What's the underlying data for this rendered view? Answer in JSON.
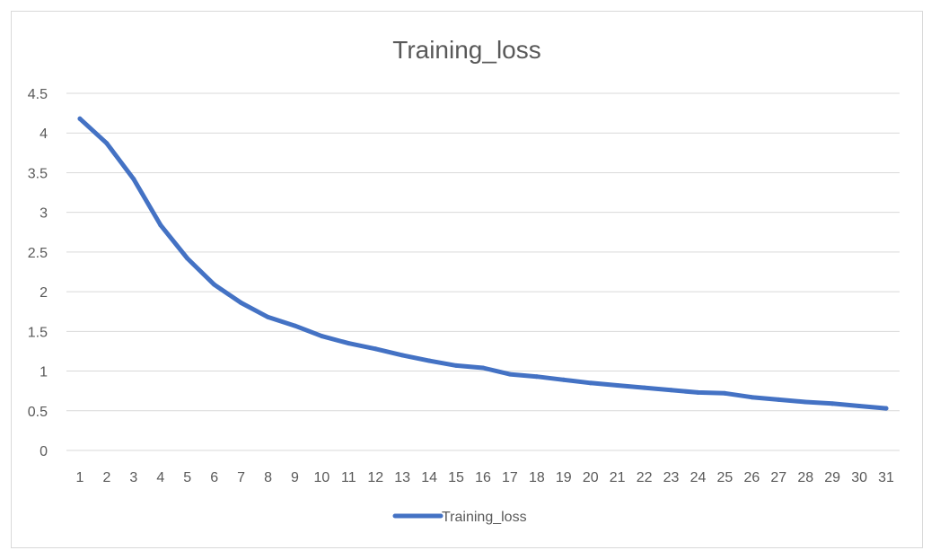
{
  "chart_data": {
    "type": "line",
    "title": "Training_loss",
    "xlabel": "",
    "ylabel": "",
    "categories": [
      "1",
      "2",
      "3",
      "4",
      "5",
      "6",
      "7",
      "8",
      "9",
      "10",
      "11",
      "12",
      "13",
      "14",
      "15",
      "16",
      "17",
      "18",
      "19",
      "20",
      "21",
      "22",
      "23",
      "24",
      "25",
      "26",
      "27",
      "28",
      "29",
      "30",
      "31"
    ],
    "series": [
      {
        "name": "Training_loss",
        "color": "#4472c4",
        "values": [
          4.18,
          3.87,
          3.42,
          2.84,
          2.42,
          2.09,
          1.86,
          1.68,
          1.57,
          1.44,
          1.35,
          1.28,
          1.2,
          1.13,
          1.07,
          1.04,
          0.96,
          0.93,
          0.89,
          0.85,
          0.82,
          0.79,
          0.76,
          0.73,
          0.72,
          0.67,
          0.64,
          0.61,
          0.59,
          0.56,
          0.53
        ]
      }
    ],
    "ylim": [
      0,
      4.5
    ],
    "yticks": [
      "0",
      "0.5",
      "1",
      "1.5",
      "2",
      "2.5",
      "3",
      "3.5",
      "4",
      "4.5"
    ],
    "grid": "horizontal",
    "legend": "bottom",
    "colors": {
      "gridline": "#d9d9d9",
      "text": "#595959",
      "border": "#d9d9d9"
    }
  }
}
